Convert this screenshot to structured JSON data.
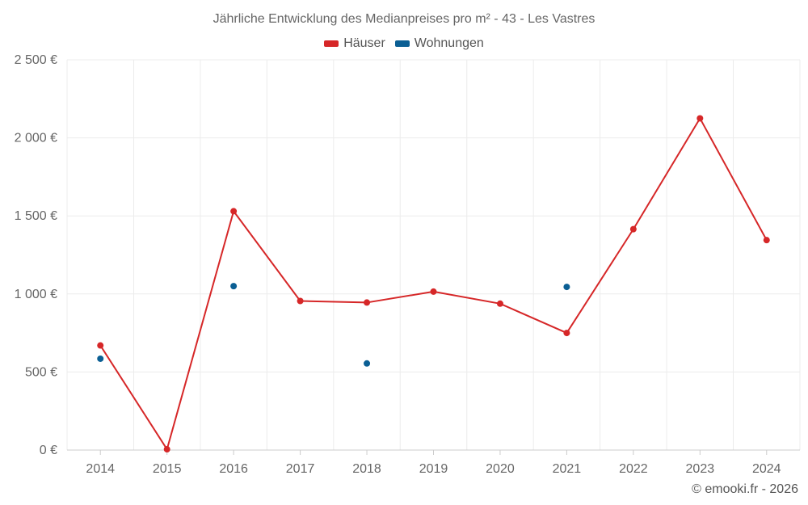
{
  "colors": {
    "houses": "#d62728",
    "apartments": "#0b5f94",
    "grid": "#ececec",
    "axis_text": "#666666"
  },
  "chart_data": {
    "type": "line",
    "title": "Jährliche Entwicklung des Medianpreises pro m² - 43 - Les Vastres",
    "xlabel": "",
    "ylabel": "",
    "categories": [
      "2014",
      "2015",
      "2016",
      "2017",
      "2018",
      "2019",
      "2020",
      "2021",
      "2022",
      "2023",
      "2024"
    ],
    "ylim": [
      0,
      2500
    ],
    "yticks": [
      0,
      500,
      1000,
      1500,
      2000,
      2500
    ],
    "ytick_labels": [
      "0 €",
      "500 €",
      "1 000 €",
      "1 500 €",
      "2 000 €",
      "2 500 €"
    ],
    "grid": true,
    "legend": "top-center",
    "series": [
      {
        "name": "Häuser",
        "mode": "line+markers",
        "values": [
          670,
          5,
          1530,
          955,
          945,
          1015,
          938,
          750,
          1415,
          2125,
          1345
        ]
      },
      {
        "name": "Wohnungen",
        "mode": "markers",
        "values": [
          585,
          null,
          1050,
          null,
          555,
          null,
          null,
          1045,
          null,
          null,
          null
        ]
      }
    ]
  },
  "credit": "© emooki.fr - 2026"
}
